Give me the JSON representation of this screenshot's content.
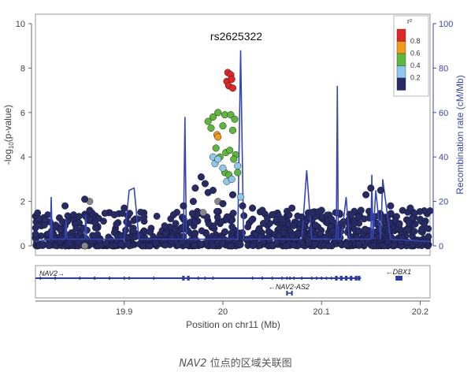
{
  "chart_data": {
    "type": "scatter",
    "title": "",
    "lead_snp": "rs2625322",
    "xlabel": "Position on chr11 (Mb)",
    "ylabel": "-log10(p-value)",
    "ylabel_right": "Recombination rate (cM/Mb)",
    "xlim": [
      19.81,
      20.21
    ],
    "ylim": [
      0,
      10
    ],
    "ylim_right": [
      0,
      100
    ],
    "x_ticks": [
      "19.9",
      "20",
      "20.1",
      "20.2"
    ],
    "y_ticks": [
      "0",
      "2",
      "4",
      "6",
      "8",
      "10"
    ],
    "y_ticks_right": [
      "0",
      "20",
      "40",
      "60",
      "80",
      "100"
    ],
    "legend": {
      "title": "r²",
      "placement": "top-right",
      "labels": [
        "0.8",
        "0.6",
        "0.4",
        "0.2"
      ],
      "colors": [
        "#e02525",
        "#f39a1e",
        "#5cb83a",
        "#8ec8ea",
        "#262a66"
      ]
    },
    "series": [
      {
        "r2_bin": "0.8-1.0",
        "color": "#e02525",
        "points": [
          [
            20.005,
            7.8
          ],
          [
            20.008,
            7.7
          ],
          [
            20.004,
            7.4
          ],
          [
            20.009,
            7.5
          ],
          [
            20.006,
            7.2
          ],
          [
            20.01,
            7.1
          ]
        ]
      },
      {
        "r2_bin": "0.6-0.8",
        "color": "#f39a1e",
        "points": [
          [
            19.994,
            5.0
          ],
          [
            19.995,
            4.9
          ]
        ]
      },
      {
        "r2_bin": "0.4-0.6",
        "color": "#5cb83a",
        "points": [
          [
            19.985,
            5.6
          ],
          [
            19.99,
            5.8
          ],
          [
            19.995,
            6.0
          ],
          [
            20.002,
            5.9
          ],
          [
            20.008,
            5.9
          ],
          [
            20.012,
            5.7
          ],
          [
            19.988,
            5.3
          ],
          [
            20.0,
            5.4
          ],
          [
            20.01,
            5.2
          ],
          [
            19.993,
            4.4
          ],
          [
            20.003,
            4.2
          ],
          [
            20.007,
            4.3
          ],
          [
            20.013,
            4.1
          ],
          [
            19.997,
            4.0
          ],
          [
            20.011,
            3.9
          ],
          [
            20.002,
            3.3
          ],
          [
            20.006,
            3.2
          ],
          [
            20.015,
            3.3
          ]
        ]
      },
      {
        "r2_bin": "0.2-0.4",
        "color": "#8ec8ea",
        "points": [
          [
            19.99,
            4.0
          ],
          [
            19.992,
            3.7
          ],
          [
            20.0,
            3.5
          ],
          [
            20.004,
            2.9
          ],
          [
            20.009,
            3.0
          ],
          [
            20.015,
            3.6
          ],
          [
            20.018,
            2.2
          ],
          [
            19.995,
            3.9
          ]
        ]
      },
      {
        "r2_bin": "0-0.2",
        "color": "#262a66",
        "points": [
          [
            19.84,
            1.8
          ],
          [
            19.86,
            2.1
          ],
          [
            19.865,
            1.6
          ],
          [
            19.89,
            1.4
          ],
          [
            19.9,
            1.7
          ],
          [
            19.92,
            1.3
          ],
          [
            19.95,
            1.4
          ],
          [
            19.96,
            1.8
          ],
          [
            19.972,
            2.6
          ],
          [
            19.978,
            3.1
          ],
          [
            19.982,
            2.8
          ],
          [
            19.97,
            2.0
          ],
          [
            19.985,
            2.4
          ],
          [
            19.99,
            2.5
          ],
          [
            20.0,
            1.9
          ],
          [
            20.01,
            2.3
          ],
          [
            20.02,
            1.8
          ],
          [
            20.03,
            1.7
          ],
          [
            20.04,
            1.6
          ],
          [
            20.05,
            1.4
          ],
          [
            20.06,
            1.2
          ],
          [
            20.07,
            1.7
          ],
          [
            20.08,
            1.3
          ],
          [
            20.09,
            1.5
          ],
          [
            20.1,
            1.6
          ],
          [
            20.11,
            1.2
          ],
          [
            20.12,
            1.0
          ],
          [
            20.13,
            1.4
          ],
          [
            20.14,
            1.6
          ],
          [
            20.145,
            2.3
          ],
          [
            20.15,
            2.6
          ],
          [
            20.16,
            2.5
          ],
          [
            20.17,
            1.8
          ],
          [
            20.19,
            1.7
          ],
          [
            20.2,
            1.2
          ]
        ]
      }
    ],
    "recombination_rate": {
      "x": [
        19.81,
        19.825,
        19.826,
        19.827,
        19.84,
        19.841,
        19.842,
        19.86,
        19.861,
        19.862,
        19.9,
        19.905,
        19.91,
        19.915,
        19.92,
        19.96,
        19.9615,
        19.963,
        19.99,
        20.0,
        20.015,
        20.018,
        20.021,
        20.04,
        20.08,
        20.085,
        20.09,
        20.1,
        20.115,
        20.116,
        20.117,
        20.12,
        20.125,
        20.128,
        20.14,
        20.15,
        20.151,
        20.152,
        20.155,
        20.16,
        20.162,
        20.17,
        20.21
      ],
      "y": [
        2,
        3,
        22,
        3,
        3,
        12,
        3,
        3,
        14,
        3,
        3,
        25,
        26,
        3,
        3,
        3,
        58,
        3,
        3,
        3,
        3,
        88,
        3,
        3,
        3,
        34,
        3,
        3,
        3,
        72,
        3,
        3,
        22,
        3,
        3,
        3,
        32,
        3,
        25,
        3,
        30,
        3,
        2
      ]
    },
    "genes": [
      {
        "name": "NAV2",
        "strand": "+",
        "start": 19.81,
        "end": 20.14,
        "row": 0
      },
      {
        "name": "NAV2-AS2",
        "strand": "-",
        "start": 20.065,
        "end": 20.07,
        "row": 1
      },
      {
        "name": "DBX1",
        "strand": "-",
        "start": 20.175,
        "end": 20.182,
        "row": 0
      }
    ]
  },
  "caption": {
    "gene": "NAV2",
    "text": " 位点的区域关联图"
  }
}
